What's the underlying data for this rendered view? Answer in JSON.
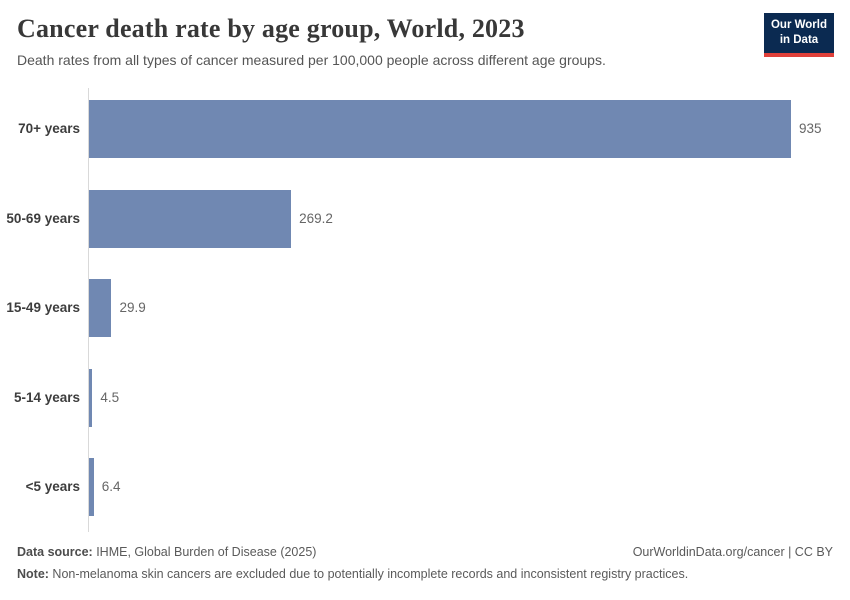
{
  "header": {
    "title": "Cancer death rate by age group, World, 2023",
    "subtitle": "Death rates from all types of cancer measured per 100,000 people across different age groups.",
    "logo": {
      "line1": "Our World",
      "line2": "in Data"
    }
  },
  "chart_data": {
    "type": "bar",
    "orientation": "horizontal",
    "title": "Cancer death rate by age group, World, 2023",
    "categories": [
      "70+ years",
      "50-69 years",
      "15-49 years",
      "5-14 years",
      "<5 years"
    ],
    "values": [
      935,
      269.2,
      29.9,
      4.5,
      6.4
    ],
    "value_labels": [
      "935",
      "269.2",
      "29.9",
      "4.5",
      "6.4"
    ],
    "xlabel": "",
    "ylabel": "",
    "xlim": [
      0,
      935
    ],
    "grid": false,
    "legend": "none",
    "bar_color": "#7088b2"
  },
  "footer": {
    "source_label": "Data source:",
    "source_text": " IHME, Global Burden of Disease (2025)",
    "link_text": "OurWorldinData.org/cancer | CC BY",
    "note_label": "Note:",
    "note_text": " Non-melanoma skin cancers are excluded due to potentially incomplete records and inconsistent registry practices."
  },
  "colors": {
    "bar": "#7088b2",
    "axis": "#d9d9d9",
    "logo_navy": "#0b2a51",
    "logo_red": "#e0403a"
  }
}
